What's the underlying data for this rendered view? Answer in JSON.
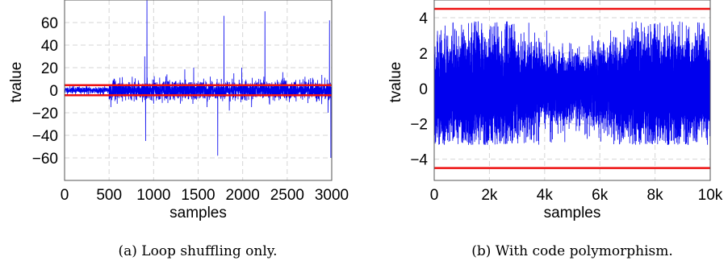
{
  "chart_data": [
    {
      "type": "line",
      "caption": "(a) Loop shuffling only.",
      "xlabel": "samples",
      "ylabel": "tvalue",
      "xlim": [
        0,
        3000
      ],
      "ylim": [
        -80,
        80
      ],
      "xticks": [
        0,
        500,
        1000,
        1500,
        2000,
        2500,
        3000
      ],
      "xtick_labels": [
        "0",
        "500",
        "1000",
        "1500",
        "2000",
        "2500",
        "3000"
      ],
      "yticks": [
        -60,
        -40,
        -20,
        0,
        20,
        40,
        60
      ],
      "ytick_labels": [
        "−60",
        "−40",
        "−20",
        "0",
        "20",
        "40",
        "60"
      ],
      "grid": true,
      "threshold_lines": [
        4.5,
        -4.5
      ],
      "series": [
        {
          "color": "#0000ee",
          "n_samples": 3000,
          "baseline_amplitude": [
            {
              "from": 0,
              "to": 500,
              "amplitude": 1.5
            },
            {
              "from": 500,
              "to": 3000,
              "amplitude": 4
            }
          ],
          "spikes": [
            {
              "x": 520,
              "y": -15
            },
            {
              "x": 560,
              "y": 10
            },
            {
              "x": 650,
              "y": -10
            },
            {
              "x": 760,
              "y": 12
            },
            {
              "x": 900,
              "y": 30
            },
            {
              "x": 910,
              "y": -45
            },
            {
              "x": 925,
              "y": 80
            },
            {
              "x": 1000,
              "y": -12
            },
            {
              "x": 1150,
              "y": 14
            },
            {
              "x": 1300,
              "y": -12
            },
            {
              "x": 1450,
              "y": 20
            },
            {
              "x": 1600,
              "y": -15
            },
            {
              "x": 1720,
              "y": -58
            },
            {
              "x": 1760,
              "y": 10
            },
            {
              "x": 1790,
              "y": 66
            },
            {
              "x": 1850,
              "y": -18
            },
            {
              "x": 1990,
              "y": 20
            },
            {
              "x": 2100,
              "y": -15
            },
            {
              "x": 2250,
              "y": 70
            },
            {
              "x": 2300,
              "y": -12
            },
            {
              "x": 2450,
              "y": 16
            },
            {
              "x": 2600,
              "y": -10
            },
            {
              "x": 2700,
              "y": 12
            },
            {
              "x": 2960,
              "y": -20
            },
            {
              "x": 2975,
              "y": 62
            },
            {
              "x": 2990,
              "y": -60
            }
          ]
        }
      ],
      "threshold_color": "#ee1111"
    },
    {
      "type": "line",
      "caption": "(b) With code polymorphism.",
      "xlabel": "samples",
      "ylabel": "tvalue",
      "xlim": [
        0,
        10000
      ],
      "ylim": [
        -5.2,
        5.0
      ],
      "xticks": [
        0,
        2000,
        4000,
        6000,
        8000,
        10000
      ],
      "xtick_labels": [
        "0",
        "2k",
        "4k",
        "6k",
        "8k",
        "10k"
      ],
      "yticks": [
        -4,
        -2,
        0,
        2,
        4
      ],
      "ytick_labels": [
        "−4",
        "−2",
        "0",
        "2",
        "4"
      ],
      "grid": true,
      "threshold_lines": [
        4.5,
        -4.5
      ],
      "series": [
        {
          "color": "#0000ee",
          "n_samples": 10000,
          "baseline_amplitude": [
            {
              "from": 0,
              "to": 10000,
              "amplitude": 1.2
            }
          ],
          "envelope_max": 3.8,
          "envelope_min": -3.2
        }
      ],
      "threshold_color": "#ee1111"
    }
  ]
}
